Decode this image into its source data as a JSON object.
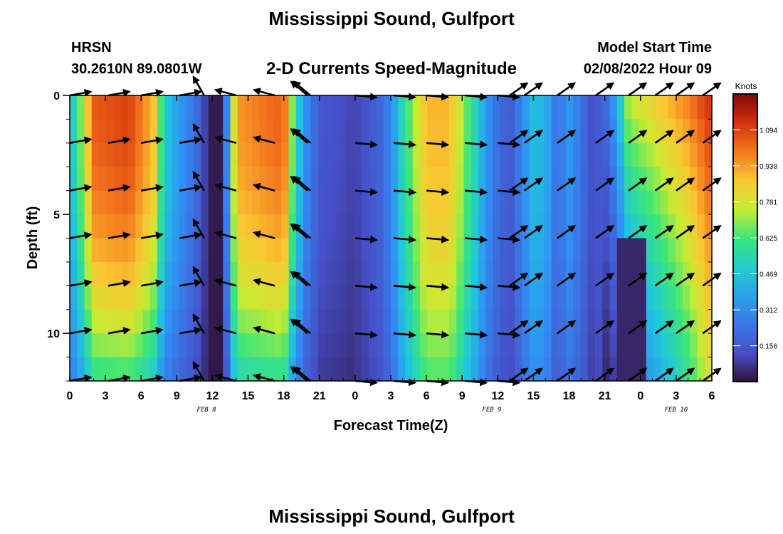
{
  "header": {
    "title": "Mississippi Sound, Gulfport",
    "subtitle": "2-D Currents Speed-Magnitude",
    "station": "HRSN",
    "coords": "30.2610N  89.0801W",
    "model_start_label": "Model Start Time",
    "model_start_value": "02/08/2022 Hour 09"
  },
  "footer": {
    "title": "Mississippi Sound, Gulfport"
  },
  "chart_data": {
    "type": "heatmap",
    "title": "2-D Currents Speed-Magnitude",
    "xlabel": "Forecast Time(Z)",
    "ylabel": "Depth (ft)",
    "xlim": [
      0,
      54
    ],
    "ylim": [
      0,
      12
    ],
    "y_inverted": true,
    "x_tick_labels": [
      "0",
      "3",
      "6",
      "9",
      "12",
      "15",
      "18",
      "21",
      "0",
      "3",
      "6",
      "9",
      "12",
      "15",
      "18",
      "21",
      "0",
      "3",
      "6"
    ],
    "y_tick_labels": [
      "0",
      "5",
      "10"
    ],
    "date_labels": [
      {
        "text": "FEB 8",
        "at_hour": 11.5
      },
      {
        "text": "FEB 9",
        "at_hour": 35.5
      },
      {
        "text": "FEB 10",
        "at_hour": 51
      }
    ],
    "colorbar": {
      "label": "Knots",
      "range": [
        0,
        1.25
      ],
      "ticks": [
        "1.094",
        "0.938",
        "0.781",
        "0.625",
        "0.469",
        "0.312",
        "0.156"
      ],
      "tick_values": [
        1.094,
        0.938,
        0.781,
        0.625,
        0.469,
        0.312,
        0.156
      ]
    },
    "speed_profile_by_hour": [
      [
        0,
        0.45
      ],
      [
        1,
        0.7
      ],
      [
        2,
        1.05
      ],
      [
        5,
        1.1
      ],
      [
        7,
        0.9
      ],
      [
        8,
        0.5
      ],
      [
        9,
        0.38
      ],
      [
        10,
        0.28
      ],
      [
        11,
        0.18
      ],
      [
        11.7,
        0.02
      ],
      [
        12.6,
        0.02
      ],
      [
        13.2,
        0.3
      ],
      [
        14,
        0.95
      ],
      [
        18,
        1.05
      ],
      [
        19,
        0.55
      ],
      [
        20,
        0.3
      ],
      [
        21,
        0.15
      ],
      [
        24,
        0.1
      ],
      [
        26,
        0.18
      ],
      [
        27,
        0.3
      ],
      [
        28,
        0.55
      ],
      [
        30,
        0.9
      ],
      [
        32,
        0.9
      ],
      [
        34,
        0.55
      ],
      [
        35,
        0.35
      ],
      [
        36,
        0.22
      ],
      [
        37,
        0.15
      ],
      [
        38,
        0.3
      ],
      [
        39,
        0.45
      ],
      [
        40,
        0.42
      ],
      [
        41,
        0.22
      ],
      [
        42,
        0.35
      ],
      [
        44,
        0.12
      ],
      [
        45,
        0.2
      ],
      [
        46,
        0.4
      ],
      [
        47,
        0.75
      ],
      [
        52,
        1.0
      ],
      [
        54,
        1.15
      ]
    ],
    "vectors": [
      {
        "time_hours": [
          0,
          3,
          6,
          9
        ],
        "direction_deg_cw_from_east": -10
      },
      {
        "time_hours": [
          11.3
        ],
        "direction_deg_cw_from_east": -120
      },
      {
        "time_hours": [
          14,
          17
        ],
        "direction_deg_cw_from_east": -165
      },
      {
        "time_hours": [
          20,
          20
        ],
        "direction_deg_cw_from_east": -140
      },
      {
        "time_hours": [
          24,
          27,
          30,
          33,
          36
        ],
        "direction_deg_cw_from_east": 5
      },
      {
        "time_hours": [
          37,
          38,
          41,
          44,
          47,
          49,
          51,
          53
        ],
        "direction_deg_cw_from_east": -35
      }
    ]
  }
}
